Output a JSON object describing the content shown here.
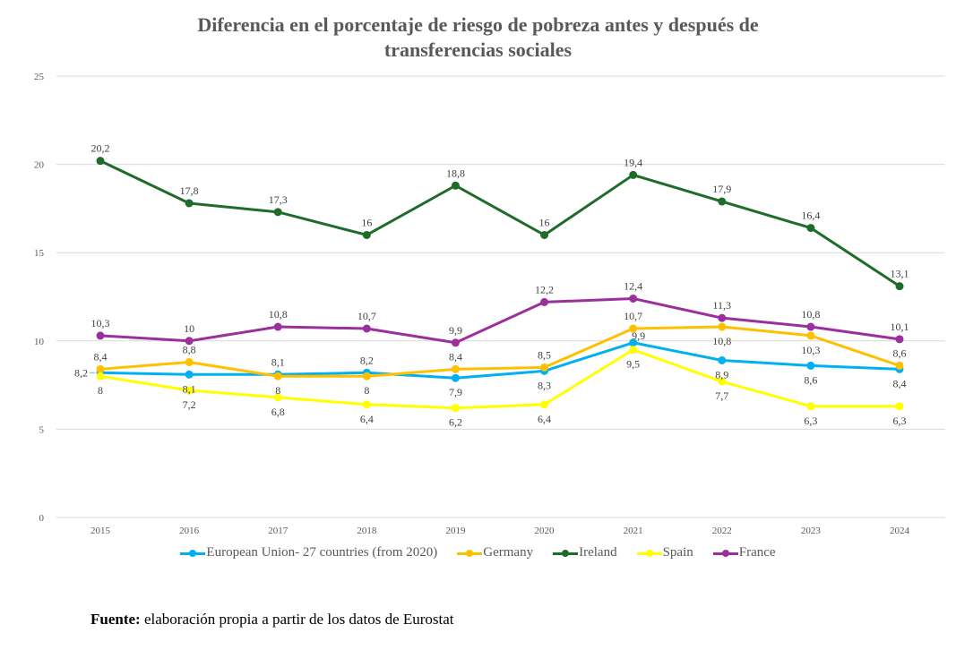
{
  "chart_data": {
    "type": "line",
    "title": "Diferencia en el porcentaje de riesgo de pobreza antes y después de transferencias sociales",
    "title_lines": [
      "Diferencia en el porcentaje de riesgo de pobreza antes y después de",
      "transferencias sociales"
    ],
    "xlabel": "",
    "ylabel": "",
    "x": [
      "2015",
      "2016",
      "2017",
      "2018",
      "2019",
      "2020",
      "2021",
      "2022",
      "2023",
      "2024"
    ],
    "ylim": [
      0,
      25
    ],
    "yticks": [
      0,
      5,
      10,
      15,
      20,
      25
    ],
    "grid": true,
    "legend_position": "bottom",
    "decimal_separator": ",",
    "series": [
      {
        "name": "European Union- 27 countries (from 2020)",
        "color": "#00B0F0",
        "values": [
          8.2,
          8.1,
          8.1,
          8.2,
          7.9,
          8.3,
          9.9,
          8.9,
          8.6,
          8.4
        ],
        "label_pos": [
          "left",
          "below",
          "above",
          "above",
          "below",
          "below",
          "above-right",
          "below",
          "below",
          "below"
        ]
      },
      {
        "name": "Germany",
        "color": "#FFC000",
        "values": [
          8.4,
          8.8,
          8,
          8,
          8.4,
          8.5,
          10.7,
          10.8,
          10.3,
          8.6
        ],
        "label_pos": [
          "above",
          "above",
          "below",
          "below",
          "above",
          "above",
          "above",
          "below",
          "below",
          "above"
        ]
      },
      {
        "name": "Ireland",
        "color": "#1E6B2A",
        "values": [
          20.2,
          17.8,
          17.3,
          16,
          18.8,
          16,
          19.4,
          17.9,
          16.4,
          13.1
        ],
        "label_pos": [
          "above",
          "above",
          "above",
          "above",
          "above",
          "above",
          "above",
          "above",
          "above",
          "above"
        ]
      },
      {
        "name": "Spain",
        "color": "#FFFF00",
        "values": [
          8,
          7.2,
          6.8,
          6.4,
          6.2,
          6.4,
          9.5,
          7.7,
          6.3,
          6.3
        ],
        "label_pos": [
          "below",
          "below",
          "below",
          "below",
          "below",
          "below",
          "below",
          "below",
          "below",
          "below"
        ]
      },
      {
        "name": "France",
        "color": "#9B2F9B",
        "values": [
          10.3,
          10,
          10.8,
          10.7,
          9.9,
          12.2,
          12.4,
          11.3,
          10.8,
          10.1
        ],
        "label_pos": [
          "above",
          "above",
          "above",
          "above",
          "above",
          "above",
          "above",
          "above",
          "above",
          "above"
        ]
      }
    ]
  },
  "footer": {
    "label": "Fuente:",
    "text": " elaboración propia a partir de los datos de Eurostat"
  }
}
